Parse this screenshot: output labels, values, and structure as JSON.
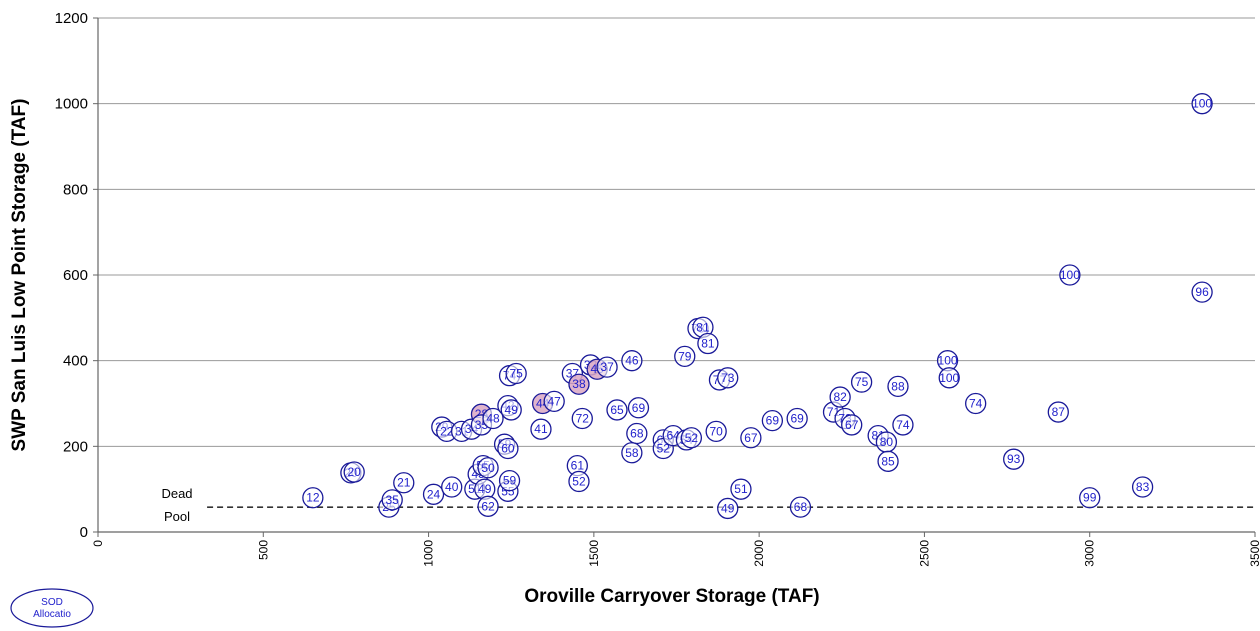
{
  "chart_data": {
    "type": "scatter",
    "xlabel": "Oroville Carryover Storage (TAF)",
    "ylabel": "SWP San Luis Low Point Storage (TAF)",
    "xlim": [
      0,
      3500
    ],
    "ylim": [
      0,
      1200
    ],
    "x_ticks": [
      "0",
      "500",
      "1000",
      "1500",
      "2000",
      "2500",
      "3000",
      "3500"
    ],
    "y_ticks": [
      "0",
      "200",
      "400",
      "600",
      "800",
      "1000",
      "1200"
    ],
    "grid": "horizontal",
    "reference_line": {
      "y": 58,
      "x_start": 330,
      "x_end": 3500,
      "label_line1": "Dead",
      "label_line2": "Pool",
      "style": "dashed"
    },
    "legend": {
      "line1": "SOD",
      "line2": "Allocatio",
      "placement": "bottom-left"
    },
    "colors": {
      "marker_fill": "#ffffff",
      "marker_stroke": "#1a1a99",
      "label": "#2222cc",
      "highlight_fill": "#d9a7c3",
      "grid": "#999999",
      "axis": "#666666"
    },
    "points": [
      {
        "x": 650,
        "y": 80,
        "label": "12"
      },
      {
        "x": 765,
        "y": 138,
        "label": "20"
      },
      {
        "x": 775,
        "y": 140,
        "label": "20"
      },
      {
        "x": 880,
        "y": 58,
        "label": "25"
      },
      {
        "x": 890,
        "y": 75,
        "label": "35"
      },
      {
        "x": 925,
        "y": 115,
        "label": "21"
      },
      {
        "x": 1015,
        "y": 88,
        "label": "24"
      },
      {
        "x": 1070,
        "y": 105,
        "label": "40"
      },
      {
        "x": 1040,
        "y": 245,
        "label": "29"
      },
      {
        "x": 1055,
        "y": 235,
        "label": "22"
      },
      {
        "x": 1100,
        "y": 235,
        "label": "31"
      },
      {
        "x": 1130,
        "y": 240,
        "label": "34"
      },
      {
        "x": 1160,
        "y": 275,
        "label": "28",
        "highlight": true
      },
      {
        "x": 1160,
        "y": 250,
        "label": "35"
      },
      {
        "x": 1195,
        "y": 265,
        "label": "48"
      },
      {
        "x": 1140,
        "y": 100,
        "label": "51"
      },
      {
        "x": 1150,
        "y": 135,
        "label": "45"
      },
      {
        "x": 1165,
        "y": 155,
        "label": "55"
      },
      {
        "x": 1180,
        "y": 150,
        "label": "50"
      },
      {
        "x": 1170,
        "y": 100,
        "label": "49"
      },
      {
        "x": 1180,
        "y": 60,
        "label": "62"
      },
      {
        "x": 1240,
        "y": 95,
        "label": "55"
      },
      {
        "x": 1245,
        "y": 120,
        "label": "59"
      },
      {
        "x": 1230,
        "y": 205,
        "label": "59"
      },
      {
        "x": 1240,
        "y": 195,
        "label": "60"
      },
      {
        "x": 1240,
        "y": 295,
        "label": "42"
      },
      {
        "x": 1250,
        "y": 285,
        "label": "49"
      },
      {
        "x": 1245,
        "y": 365,
        "label": "74"
      },
      {
        "x": 1265,
        "y": 370,
        "label": "75"
      },
      {
        "x": 1345,
        "y": 300,
        "label": "44",
        "highlight": true
      },
      {
        "x": 1380,
        "y": 305,
        "label": "47"
      },
      {
        "x": 1340,
        "y": 240,
        "label": "41"
      },
      {
        "x": 1435,
        "y": 370,
        "label": "37"
      },
      {
        "x": 1455,
        "y": 345,
        "label": "38",
        "highlight": true
      },
      {
        "x": 1490,
        "y": 390,
        "label": "32"
      },
      {
        "x": 1510,
        "y": 380,
        "label": "45",
        "highlight": true
      },
      {
        "x": 1540,
        "y": 385,
        "label": "37"
      },
      {
        "x": 1615,
        "y": 400,
        "label": "46"
      },
      {
        "x": 1465,
        "y": 265,
        "label": "72"
      },
      {
        "x": 1570,
        "y": 285,
        "label": "65"
      },
      {
        "x": 1635,
        "y": 290,
        "label": "69"
      },
      {
        "x": 1630,
        "y": 230,
        "label": "68"
      },
      {
        "x": 1615,
        "y": 185,
        "label": "58"
      },
      {
        "x": 1450,
        "y": 155,
        "label": "61"
      },
      {
        "x": 1455,
        "y": 118,
        "label": "52"
      },
      {
        "x": 1710,
        "y": 215,
        "label": "60"
      },
      {
        "x": 1710,
        "y": 195,
        "label": "52"
      },
      {
        "x": 1740,
        "y": 225,
        "label": "64"
      },
      {
        "x": 1780,
        "y": 215,
        "label": "54"
      },
      {
        "x": 1795,
        "y": 220,
        "label": "52"
      },
      {
        "x": 1775,
        "y": 410,
        "label": "79"
      },
      {
        "x": 1815,
        "y": 475,
        "label": "78"
      },
      {
        "x": 1830,
        "y": 478,
        "label": "81"
      },
      {
        "x": 1845,
        "y": 440,
        "label": "81"
      },
      {
        "x": 1870,
        "y": 235,
        "label": "70"
      },
      {
        "x": 1880,
        "y": 355,
        "label": "77"
      },
      {
        "x": 1905,
        "y": 360,
        "label": "73"
      },
      {
        "x": 1905,
        "y": 55,
        "label": "49"
      },
      {
        "x": 1945,
        "y": 100,
        "label": "51"
      },
      {
        "x": 1975,
        "y": 220,
        "label": "67"
      },
      {
        "x": 2040,
        "y": 260,
        "label": "69"
      },
      {
        "x": 2115,
        "y": 265,
        "label": "69"
      },
      {
        "x": 2125,
        "y": 58,
        "label": "68"
      },
      {
        "x": 2225,
        "y": 280,
        "label": "71"
      },
      {
        "x": 2245,
        "y": 315,
        "label": "82"
      },
      {
        "x": 2260,
        "y": 265,
        "label": "73"
      },
      {
        "x": 2280,
        "y": 250,
        "label": "67"
      },
      {
        "x": 2310,
        "y": 350,
        "label": "75"
      },
      {
        "x": 2360,
        "y": 225,
        "label": "81"
      },
      {
        "x": 2385,
        "y": 210,
        "label": "80"
      },
      {
        "x": 2390,
        "y": 165,
        "label": "85"
      },
      {
        "x": 2420,
        "y": 340,
        "label": "88"
      },
      {
        "x": 2435,
        "y": 250,
        "label": "74"
      },
      {
        "x": 2570,
        "y": 400,
        "label": "100"
      },
      {
        "x": 2575,
        "y": 360,
        "label": "100"
      },
      {
        "x": 2655,
        "y": 300,
        "label": "74"
      },
      {
        "x": 2770,
        "y": 170,
        "label": "93"
      },
      {
        "x": 2905,
        "y": 280,
        "label": "87"
      },
      {
        "x": 2940,
        "y": 600,
        "label": "100"
      },
      {
        "x": 3000,
        "y": 80,
        "label": "99"
      },
      {
        "x": 3160,
        "y": 105,
        "label": "83"
      },
      {
        "x": 3340,
        "y": 1000,
        "label": "100"
      },
      {
        "x": 3340,
        "y": 560,
        "label": "96"
      }
    ]
  }
}
